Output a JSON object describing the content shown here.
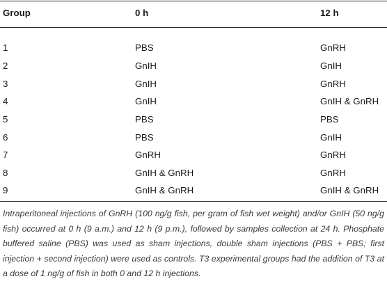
{
  "table": {
    "headers": [
      "Group",
      "0 h",
      "12 h"
    ],
    "rows": [
      {
        "group": "1",
        "h0": "PBS",
        "h12": "GnRH"
      },
      {
        "group": "2",
        "h0": "GnIH",
        "h12": "GnIH"
      },
      {
        "group": "3",
        "h0": "GnIH",
        "h12": "GnRH"
      },
      {
        "group": "4",
        "h0": "GnIH",
        "h12": "GnIH & GnRH"
      },
      {
        "group": "5",
        "h0": "PBS",
        "h12": "PBS"
      },
      {
        "group": "6",
        "h0": "PBS",
        "h12": "GnIH"
      },
      {
        "group": "7",
        "h0": "GnRH",
        "h12": "GnRH"
      },
      {
        "group": "8",
        "h0": "GnIH & GnRH",
        "h12": "GnRH"
      },
      {
        "group": "9",
        "h0": "GnIH & GnRH",
        "h12": "GnIH & GnRH"
      }
    ]
  },
  "footnote": "Intraperitoneal injections of GnRH (100 ng/g fish, per gram of fish wet weight) and/or GnIH (50 ng/g fish) occurred at 0 h (9 a.m.) and 12 h (9 p.m.), followed by samples collection at 24 h. Phosphate buffered saline (PBS) was used as sham injections, double sham injections (PBS + PBS; first injection + second injection) were used as controls. T3 experimental groups had the addition of T3 at a dose of 1 ng/g of fish in both 0 and 12 h injections."
}
